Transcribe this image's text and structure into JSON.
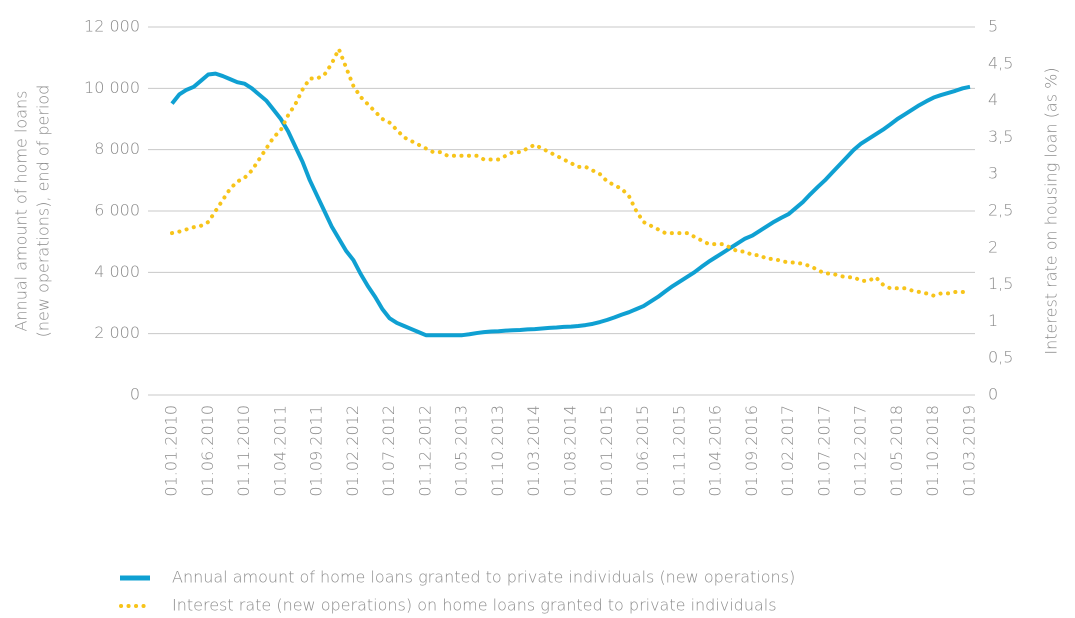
{
  "chart_data": {
    "type": "line",
    "categories": [
      "01.01.2010",
      null,
      null,
      null,
      null,
      "01.06.2010",
      null,
      null,
      null,
      null,
      "01.11.2010",
      null,
      null,
      null,
      null,
      "01.04.2011",
      null,
      null,
      null,
      null,
      "01.09.2011",
      null,
      null,
      null,
      null,
      "01.02.2012",
      null,
      null,
      null,
      null,
      "01.07.2012",
      null,
      null,
      null,
      null,
      "01.12.2012",
      null,
      null,
      null,
      null,
      "01.05.2013",
      null,
      null,
      null,
      null,
      "01.10.2013",
      null,
      null,
      null,
      null,
      "01.03.2014",
      null,
      null,
      null,
      null,
      "01.08.2014",
      null,
      null,
      null,
      null,
      "01.01.2015",
      null,
      null,
      null,
      null,
      "01.06.2015",
      null,
      null,
      null,
      null,
      "01.11.2015",
      null,
      null,
      null,
      null,
      "01.04.2016",
      null,
      null,
      null,
      null,
      "01.09.2016",
      null,
      null,
      null,
      null,
      "01.02.2017",
      null,
      null,
      null,
      null,
      "01.07.2017",
      null,
      null,
      null,
      null,
      "01.12.2017",
      null,
      null,
      null,
      null,
      "01.05.2018",
      null,
      null,
      null,
      null,
      "01.10.2018",
      null,
      null,
      null,
      null,
      "01.03.2019"
    ],
    "series": [
      {
        "name": "Annual amount of home loans granted to private individuals (new operations)",
        "color": "#0fa0d2",
        "style": "solid",
        "values": [
          9500,
          9800,
          9950,
          10050,
          10250,
          10450,
          10480,
          10400,
          10300,
          10200,
          10150,
          10000,
          9800,
          9600,
          9300,
          9000,
          8600,
          8100,
          7600,
          7000,
          6500,
          6000,
          5500,
          5100,
          4700,
          4400,
          3950,
          3550,
          3200,
          2800,
          2500,
          2350,
          2250,
          2150,
          2050,
          1950,
          1950,
          1950,
          1950,
          1950,
          1950,
          1980,
          2020,
          2050,
          2070,
          2080,
          2100,
          2110,
          2120,
          2140,
          2150,
          2170,
          2190,
          2200,
          2220,
          2230,
          2250,
          2280,
          2320,
          2380,
          2450,
          2530,
          2620,
          2700,
          2800,
          2900,
          3050,
          3200,
          3380,
          3550,
          3700,
          3850,
          4000,
          4180,
          4350,
          4500,
          4650,
          4800,
          4950,
          5100,
          5200,
          5350,
          5500,
          5650,
          5780,
          5900,
          6100,
          6300,
          6550,
          6780,
          7000,
          7250,
          7500,
          7750,
          8000,
          8200,
          8350,
          8500,
          8650,
          8820,
          9000,
          9150,
          9300,
          9450,
          9580,
          9700,
          9780,
          9850,
          9920,
          10000,
          10050
        ]
      },
      {
        "name": "Interest rate (new operations) on home loans granted to private individuals",
        "color": "#f7c41a",
        "style": "dotted",
        "axis": "y2",
        "values": [
          2.2,
          2.22,
          2.25,
          2.28,
          2.3,
          2.35,
          2.5,
          2.65,
          2.8,
          2.9,
          2.95,
          3.05,
          3.2,
          3.35,
          3.5,
          3.6,
          3.8,
          3.95,
          4.15,
          4.3,
          4.3,
          4.35,
          4.5,
          4.7,
          4.45,
          4.2,
          4.05,
          3.95,
          3.85,
          3.75,
          3.7,
          3.6,
          3.5,
          3.45,
          3.4,
          3.35,
          3.3,
          3.3,
          3.25,
          3.25,
          3.25,
          3.25,
          3.25,
          3.2,
          3.2,
          3.2,
          3.25,
          3.3,
          3.3,
          3.35,
          3.4,
          3.35,
          3.3,
          3.25,
          3.2,
          3.15,
          3.1,
          3.1,
          3.05,
          3,
          2.9,
          2.85,
          2.8,
          2.7,
          2.5,
          2.35,
          2.3,
          2.25,
          2.2,
          2.2,
          2.2,
          2.2,
          2.15,
          2.1,
          2.05,
          2.05,
          2.05,
          2,
          1.95,
          1.95,
          1.9,
          1.9,
          1.85,
          1.85,
          1.82,
          1.8,
          1.8,
          1.78,
          1.75,
          1.7,
          1.65,
          1.65,
          1.62,
          1.6,
          1.6,
          1.55,
          1.55,
          1.6,
          1.5,
          1.45,
          1.45,
          1.45,
          1.42,
          1.4,
          1.38,
          1.35,
          1.38,
          1.38,
          1.4,
          1.4,
          1.4
        ]
      }
    ],
    "y_label": [
      "Annual amount of home loans",
      "(new operations), end of period"
    ],
    "y2_label": "Interest rate on housing loan (as %)",
    "ylim": [
      0,
      12000
    ],
    "yticks": [
      0,
      {
        "value": 2000,
        "label": "2 000"
      },
      {
        "value": 4000,
        "label": "4 000"
      },
      {
        "value": 6000,
        "label": "6 000"
      },
      {
        "value": 8000,
        "label": "8 000"
      },
      {
        "value": 10000,
        "label": "10 000"
      },
      {
        "value": 12000,
        "label": "12 000"
      }
    ],
    "y2lim": [
      0,
      5
    ],
    "y2ticks": [
      0,
      {
        "value": 0.5,
        "label": "0,5"
      },
      1,
      {
        "value": 1.5,
        "label": "1,5"
      },
      2,
      {
        "value": 2.5,
        "label": "2,5"
      },
      3,
      {
        "value": 3.5,
        "label": "3,5"
      },
      4,
      {
        "value": 4.5,
        "label": "4,5"
      },
      5
    ],
    "grid": true,
    "legend": "bottom"
  }
}
